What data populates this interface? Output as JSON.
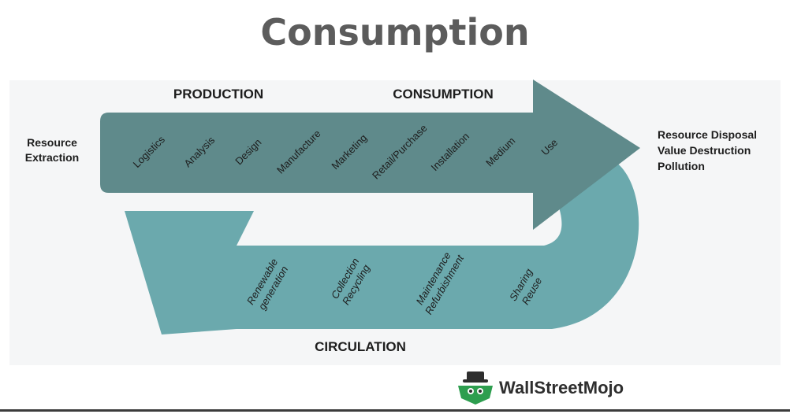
{
  "title": "Consumption",
  "left_label": [
    "Resource",
    "Extraction"
  ],
  "right_label": [
    "Resource Disposal",
    "Value Destruction",
    "Pollution"
  ],
  "headers": {
    "production": "PRODUCTION",
    "consumption": "CONSUMPTION",
    "circulation": "CIRCULATION"
  },
  "top_stages": [
    "Logistics",
    "Analysis",
    "Design",
    "Manufacture",
    "Marketing",
    "Retail/Purchase",
    "Installation",
    "Medium",
    "Use"
  ],
  "bottom_stages": [
    [
      "Renewable",
      "generation"
    ],
    [
      "Collection",
      "Recycling"
    ],
    [
      "Maintenance",
      "Refurbishment"
    ],
    [
      "Sharing",
      "Reuse"
    ]
  ],
  "colors": {
    "top_arrow": "#5f8a8b",
    "bottom_arrow": "#6ba9ad",
    "panel": "#f5f6f7",
    "title": "#5c5c5c",
    "logo_green": "#2e9e4f"
  },
  "logo": {
    "name": "WallStreetMojo"
  }
}
